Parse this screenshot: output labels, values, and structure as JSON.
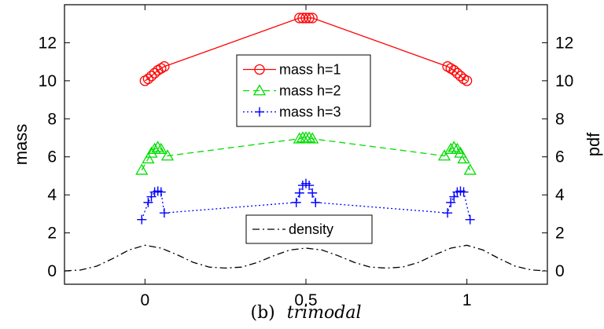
{
  "chart_data": {
    "type": "line",
    "caption_prefix": "(b)",
    "caption_title": "trimodal",
    "xlabel": "",
    "ylabel": "mass",
    "y2label": "pdf",
    "xlim": [
      -0.25,
      1.25
    ],
    "ylim": [
      -0.7,
      14.0
    ],
    "y2lim": [
      -0.7,
      14.0
    ],
    "x_ticks": [
      0,
      0.5,
      1
    ],
    "x_tick_labels": [
      "0",
      "0.5",
      "1"
    ],
    "y_ticks": [
      0,
      2,
      4,
      6,
      8,
      10,
      12
    ],
    "y_tick_labels": [
      "0",
      "2",
      "4",
      "6",
      "8",
      "10",
      "12"
    ],
    "y2_ticks": [
      0,
      2,
      4,
      6,
      8,
      10,
      12
    ],
    "y2_tick_labels": [
      "0",
      "2",
      "4",
      "6",
      "8",
      "10",
      "12"
    ],
    "grid": false,
    "colors": {
      "mass_h1": "#ff0000",
      "mass_h2": "#00dd00",
      "mass_h3": "#0000ff",
      "density": "#000000"
    },
    "series": [
      {
        "name": "mass h=1",
        "marker": "circle",
        "line": "solid",
        "color": "#ff0000",
        "x": [
          0.0,
          0.01,
          0.02,
          0.03,
          0.04,
          0.05,
          0.06,
          0.48,
          0.49,
          0.5,
          0.51,
          0.52,
          0.94,
          0.95,
          0.96,
          0.97,
          0.98,
          0.99,
          1.0
        ],
        "y": [
          10.0,
          10.1,
          10.25,
          10.4,
          10.55,
          10.65,
          10.75,
          13.3,
          13.3,
          13.3,
          13.3,
          13.3,
          10.75,
          10.65,
          10.55,
          10.4,
          10.25,
          10.1,
          10.0
        ]
      },
      {
        "name": "mass h=2",
        "marker": "triangle",
        "line": "dashed",
        "color": "#00dd00",
        "x": [
          -0.01,
          0.01,
          0.02,
          0.03,
          0.04,
          0.05,
          0.07,
          0.48,
          0.49,
          0.5,
          0.51,
          0.52,
          0.93,
          0.95,
          0.96,
          0.97,
          0.98,
          0.99,
          1.01
        ],
        "y": [
          5.3,
          5.9,
          6.2,
          6.4,
          6.5,
          6.4,
          6.05,
          6.95,
          7.0,
          7.0,
          7.0,
          6.95,
          6.05,
          6.4,
          6.5,
          6.4,
          6.2,
          5.9,
          5.3
        ]
      },
      {
        "name": "mass h=3",
        "marker": "plus",
        "line": "dotted",
        "color": "#0000ff",
        "x": [
          -0.01,
          0.01,
          0.02,
          0.03,
          0.04,
          0.05,
          0.06,
          0.47,
          0.48,
          0.49,
          0.5,
          0.51,
          0.52,
          0.53,
          0.94,
          0.95,
          0.96,
          0.97,
          0.98,
          0.99,
          1.01
        ],
        "y": [
          2.7,
          3.6,
          3.9,
          4.15,
          4.2,
          4.15,
          3.05,
          3.6,
          4.1,
          4.5,
          4.6,
          4.5,
          4.1,
          3.6,
          3.05,
          3.6,
          3.9,
          4.15,
          4.2,
          4.15,
          2.7
        ]
      },
      {
        "name": "density",
        "marker": "none",
        "line": "dashdot",
        "color": "#000000",
        "x": [
          -0.25,
          -0.2,
          -0.15,
          -0.1,
          -0.05,
          0.0,
          0.05,
          0.1,
          0.15,
          0.2,
          0.25,
          0.3,
          0.35,
          0.4,
          0.45,
          0.5,
          0.55,
          0.6,
          0.65,
          0.7,
          0.75,
          0.8,
          0.85,
          0.9,
          0.95,
          1.0,
          1.05,
          1.1,
          1.15,
          1.2,
          1.25
        ],
        "y": [
          0.0,
          0.05,
          0.25,
          0.65,
          1.1,
          1.35,
          1.2,
          0.85,
          0.45,
          0.2,
          0.15,
          0.2,
          0.45,
          0.8,
          1.1,
          1.2,
          1.1,
          0.8,
          0.45,
          0.2,
          0.15,
          0.2,
          0.45,
          0.85,
          1.2,
          1.35,
          1.1,
          0.65,
          0.25,
          0.05,
          0.0
        ]
      }
    ],
    "legends": [
      {
        "entries": [
          "mass h=1",
          "mass h=2",
          "mass h=3"
        ],
        "placement": "top-center"
      },
      {
        "entries": [
          "density"
        ],
        "placement": "lower-center"
      }
    ]
  }
}
